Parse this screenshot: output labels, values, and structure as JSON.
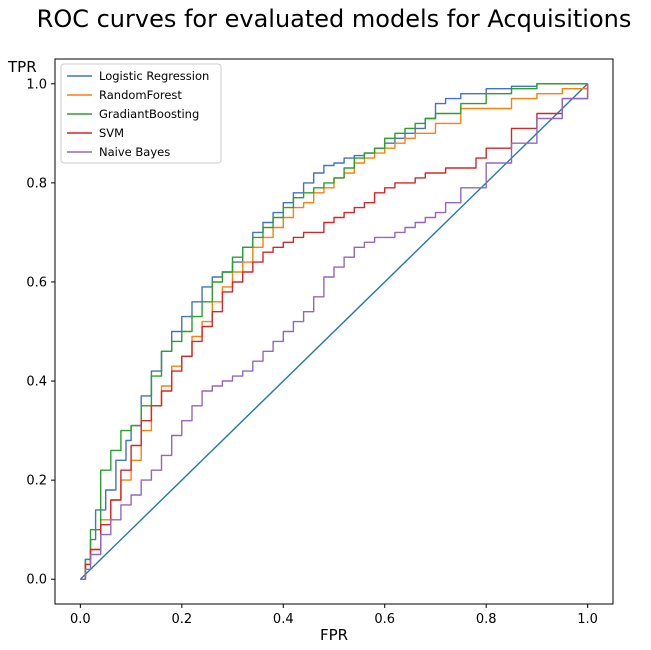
{
  "chart_data": {
    "type": "line",
    "title": "ROC curves for evaluated models for Acquisitions",
    "xlabel": "FPR",
    "ylabel": "TPR",
    "xlim": [
      -0.05,
      1.05
    ],
    "ylim": [
      -0.05,
      1.05
    ],
    "xticks": [
      "0.0",
      "0.2",
      "0.4",
      "0.6",
      "0.8",
      "1.0"
    ],
    "yticks": [
      "0.0",
      "0.2",
      "0.4",
      "0.6",
      "0.8",
      "1.0"
    ],
    "grid": false,
    "legend_position": "upper-left",
    "diagonal": {
      "x": [
        0,
        1
      ],
      "y": [
        0,
        1
      ],
      "color": "#1f77b4"
    },
    "series": [
      {
        "name": "Logistic Regression",
        "color": "#4472c4",
        "x": [
          0,
          0.01,
          0.02,
          0.03,
          0.05,
          0.07,
          0.09,
          0.1,
          0.12,
          0.14,
          0.16,
          0.18,
          0.2,
          0.22,
          0.24,
          0.26,
          0.28,
          0.3,
          0.32,
          0.34,
          0.36,
          0.38,
          0.4,
          0.42,
          0.44,
          0.46,
          0.48,
          0.5,
          0.52,
          0.54,
          0.56,
          0.58,
          0.6,
          0.62,
          0.64,
          0.66,
          0.68,
          0.7,
          0.72,
          0.75,
          0.8,
          0.85,
          0.9,
          0.95,
          1.0
        ],
        "y": [
          0,
          0.04,
          0.08,
          0.14,
          0.18,
          0.24,
          0.28,
          0.31,
          0.37,
          0.42,
          0.46,
          0.5,
          0.53,
          0.56,
          0.59,
          0.61,
          0.62,
          0.64,
          0.67,
          0.7,
          0.72,
          0.74,
          0.76,
          0.78,
          0.8,
          0.82,
          0.835,
          0.84,
          0.85,
          0.855,
          0.86,
          0.87,
          0.88,
          0.89,
          0.9,
          0.91,
          0.93,
          0.96,
          0.97,
          0.98,
          0.99,
          0.995,
          1.0,
          1.0,
          1.0
        ]
      },
      {
        "name": "RandomForest",
        "color": "#ff7f0e",
        "x": [
          0,
          0.01,
          0.02,
          0.04,
          0.06,
          0.08,
          0.1,
          0.12,
          0.14,
          0.16,
          0.18,
          0.2,
          0.22,
          0.24,
          0.26,
          0.28,
          0.3,
          0.32,
          0.34,
          0.36,
          0.38,
          0.4,
          0.42,
          0.44,
          0.46,
          0.48,
          0.5,
          0.52,
          0.54,
          0.56,
          0.58,
          0.6,
          0.62,
          0.64,
          0.66,
          0.68,
          0.7,
          0.75,
          0.8,
          0.85,
          0.9,
          0.95,
          1.0
        ],
        "y": [
          0,
          0.03,
          0.06,
          0.12,
          0.16,
          0.2,
          0.24,
          0.3,
          0.35,
          0.39,
          0.43,
          0.45,
          0.49,
          0.52,
          0.56,
          0.59,
          0.62,
          0.64,
          0.67,
          0.69,
          0.71,
          0.73,
          0.75,
          0.76,
          0.78,
          0.79,
          0.81,
          0.82,
          0.84,
          0.85,
          0.86,
          0.87,
          0.88,
          0.89,
          0.9,
          0.9,
          0.92,
          0.95,
          0.95,
          0.97,
          0.98,
          0.99,
          1.0
        ]
      },
      {
        "name": "GradiantBoosting",
        "color": "#2ca02c",
        "x": [
          0,
          0.01,
          0.02,
          0.04,
          0.06,
          0.08,
          0.1,
          0.12,
          0.14,
          0.16,
          0.18,
          0.2,
          0.22,
          0.24,
          0.26,
          0.28,
          0.3,
          0.32,
          0.34,
          0.36,
          0.38,
          0.4,
          0.42,
          0.44,
          0.46,
          0.48,
          0.5,
          0.52,
          0.54,
          0.56,
          0.58,
          0.6,
          0.62,
          0.64,
          0.66,
          0.68,
          0.7,
          0.75,
          0.8,
          0.85,
          0.9,
          0.95,
          1.0
        ],
        "y": [
          0,
          0.04,
          0.1,
          0.22,
          0.26,
          0.3,
          0.31,
          0.35,
          0.41,
          0.46,
          0.48,
          0.5,
          0.53,
          0.56,
          0.6,
          0.62,
          0.65,
          0.67,
          0.69,
          0.71,
          0.73,
          0.75,
          0.77,
          0.78,
          0.79,
          0.8,
          0.81,
          0.83,
          0.85,
          0.86,
          0.87,
          0.89,
          0.9,
          0.91,
          0.92,
          0.93,
          0.94,
          0.96,
          0.98,
          0.99,
          1.0,
          1.0,
          1.0
        ]
      },
      {
        "name": "SVM",
        "color": "#d62728",
        "x": [
          0,
          0.01,
          0.02,
          0.04,
          0.06,
          0.08,
          0.1,
          0.12,
          0.14,
          0.16,
          0.18,
          0.2,
          0.22,
          0.24,
          0.26,
          0.28,
          0.3,
          0.32,
          0.34,
          0.36,
          0.38,
          0.4,
          0.42,
          0.44,
          0.46,
          0.48,
          0.5,
          0.52,
          0.54,
          0.56,
          0.58,
          0.6,
          0.62,
          0.64,
          0.66,
          0.68,
          0.7,
          0.72,
          0.75,
          0.78,
          0.8,
          0.85,
          0.9,
          0.95,
          1.0
        ],
        "y": [
          0,
          0.03,
          0.06,
          0.11,
          0.16,
          0.22,
          0.27,
          0.32,
          0.35,
          0.38,
          0.42,
          0.45,
          0.48,
          0.51,
          0.54,
          0.58,
          0.6,
          0.62,
          0.64,
          0.66,
          0.67,
          0.68,
          0.69,
          0.7,
          0.7,
          0.72,
          0.73,
          0.74,
          0.75,
          0.76,
          0.78,
          0.79,
          0.8,
          0.8,
          0.81,
          0.82,
          0.82,
          0.83,
          0.83,
          0.85,
          0.87,
          0.91,
          0.94,
          0.97,
          1.0
        ]
      },
      {
        "name": "Naive Bayes",
        "color": "#9467bd",
        "x": [
          0,
          0.01,
          0.02,
          0.04,
          0.06,
          0.08,
          0.1,
          0.12,
          0.14,
          0.16,
          0.18,
          0.2,
          0.22,
          0.24,
          0.26,
          0.28,
          0.3,
          0.32,
          0.34,
          0.36,
          0.38,
          0.4,
          0.42,
          0.44,
          0.46,
          0.48,
          0.5,
          0.52,
          0.54,
          0.56,
          0.58,
          0.6,
          0.62,
          0.64,
          0.66,
          0.68,
          0.7,
          0.72,
          0.75,
          0.8,
          0.85,
          0.9,
          0.95,
          1.0
        ],
        "y": [
          0,
          0.02,
          0.05,
          0.09,
          0.12,
          0.15,
          0.17,
          0.2,
          0.22,
          0.25,
          0.29,
          0.32,
          0.35,
          0.38,
          0.39,
          0.4,
          0.41,
          0.42,
          0.44,
          0.46,
          0.48,
          0.5,
          0.52,
          0.54,
          0.57,
          0.61,
          0.63,
          0.65,
          0.67,
          0.68,
          0.69,
          0.69,
          0.7,
          0.71,
          0.72,
          0.73,
          0.74,
          0.76,
          0.79,
          0.84,
          0.88,
          0.93,
          0.97,
          1.0
        ]
      }
    ]
  }
}
